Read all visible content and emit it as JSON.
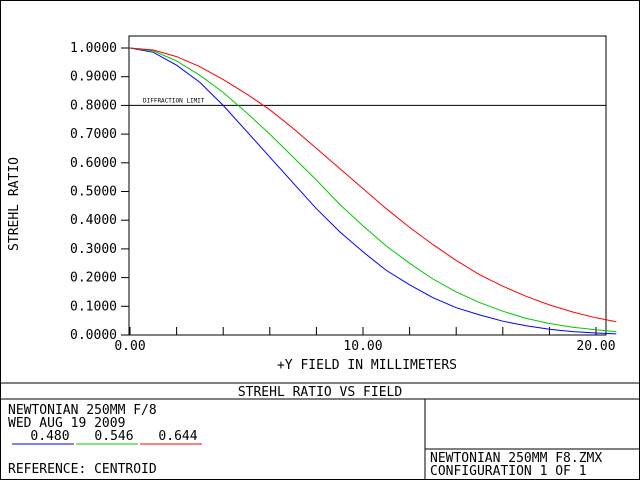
{
  "chart_data": {
    "type": "line",
    "title": "STREHL RATIO VS FIELD",
    "xlabel": "+Y FIELD IN MILLIMETERS",
    "ylabel": "STREHL RATIO",
    "xlim": [
      0,
      20.87
    ],
    "ylim": [
      0,
      1.0
    ],
    "x_ticks": [
      {
        "value": 0,
        "label": "0.00"
      },
      {
        "value": 10,
        "label": "10.00"
      },
      {
        "value": 20,
        "label": "20.00"
      }
    ],
    "y_ticks": [
      {
        "value": 1.0,
        "label": "1.0000"
      },
      {
        "value": 0.9,
        "label": "0.9000"
      },
      {
        "value": 0.8,
        "label": "0.8000"
      },
      {
        "value": 0.7,
        "label": "0.7000"
      },
      {
        "value": 0.6,
        "label": "0.6000"
      },
      {
        "value": 0.5,
        "label": "0.5000"
      },
      {
        "value": 0.4,
        "label": "0.4000"
      },
      {
        "value": 0.3,
        "label": "0.3000"
      },
      {
        "value": 0.2,
        "label": "0.2000"
      },
      {
        "value": 0.1,
        "label": "0.1000"
      },
      {
        "value": 0.0,
        "label": "0.0000"
      }
    ],
    "reference_line": {
      "label": "DIFFRACTION LIMIT",
      "y": 0.8
    },
    "grid": false,
    "series": [
      {
        "name": "0.480",
        "color": "#0000ff",
        "x": [
          0,
          1,
          2,
          3,
          4,
          5,
          6,
          7,
          8,
          9,
          10,
          11,
          12,
          13,
          14,
          15,
          16,
          17,
          18,
          19,
          20,
          20.87
        ],
        "y": [
          1.0,
          0.985,
          0.94,
          0.88,
          0.8,
          0.71,
          0.62,
          0.53,
          0.44,
          0.36,
          0.29,
          0.225,
          0.175,
          0.13,
          0.095,
          0.07,
          0.048,
          0.032,
          0.02,
          0.012,
          0.007,
          0.004
        ]
      },
      {
        "name": "0.546",
        "color": "#00c800",
        "x": [
          0,
          1,
          2,
          3,
          4,
          5,
          6,
          7,
          8,
          9,
          10,
          11,
          12,
          13,
          14,
          15,
          16,
          17,
          18,
          19,
          20,
          20.87
        ],
        "y": [
          1.0,
          0.99,
          0.955,
          0.905,
          0.845,
          0.775,
          0.7,
          0.62,
          0.54,
          0.455,
          0.38,
          0.31,
          0.25,
          0.195,
          0.15,
          0.113,
          0.083,
          0.058,
          0.04,
          0.027,
          0.018,
          0.012
        ]
      },
      {
        "name": "0.644",
        "color": "#ff0000",
        "x": [
          0,
          1,
          2,
          3,
          4,
          5,
          6,
          7,
          8,
          9,
          10,
          11,
          12,
          13,
          14,
          15,
          16,
          17,
          18,
          19,
          20,
          20.87
        ],
        "y": [
          1.0,
          0.993,
          0.97,
          0.935,
          0.89,
          0.84,
          0.785,
          0.72,
          0.65,
          0.58,
          0.51,
          0.44,
          0.375,
          0.315,
          0.26,
          0.21,
          0.17,
          0.135,
          0.105,
          0.08,
          0.06,
          0.046
        ]
      }
    ]
  },
  "footer": {
    "title": "STREHL RATIO VS FIELD",
    "left_line1": "NEWTONIAN 250MM F/8",
    "left_line2": "WED AUG 19 2009",
    "reference": "REFERENCE: CENTROID",
    "right_line1": "NEWTONIAN 250MM F8.ZMX",
    "right_line2": "CONFIGURATION 1 OF 1"
  }
}
